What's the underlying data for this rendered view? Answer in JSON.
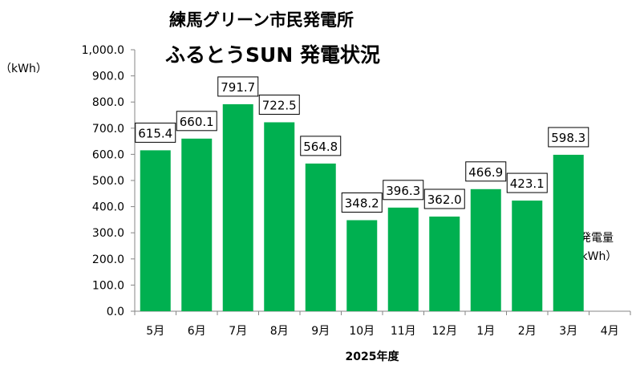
{
  "colors": {
    "bar": "#00b050",
    "axis": "#868686",
    "label_border": "#000000"
  },
  "chart_data": {
    "type": "bar",
    "title": "練馬グリーン市民発電所",
    "subtitle": "ふるとうSUN 発電状況",
    "ylabel_unit": "（kWh）",
    "xlabel": "2025年度",
    "series_name": "発電量",
    "series_unit": "（kWh）",
    "categories": [
      "5月",
      "6月",
      "7月",
      "8月",
      "9月",
      "10月",
      "11月",
      "12月",
      "1月",
      "2月",
      "3月",
      "4月"
    ],
    "values": [
      615.4,
      660.1,
      791.7,
      722.5,
      564.8,
      348.2,
      396.3,
      362.0,
      466.9,
      423.1,
      598.3,
      null
    ],
    "data_labels": [
      "615.4",
      "660.1",
      "791.7",
      "722.5",
      "564.8",
      "348.2",
      "396.3",
      "362.0",
      "466.9",
      "423.1",
      "598.3",
      ""
    ],
    "ylim": [
      0,
      1000
    ],
    "yticks": [
      0,
      100,
      200,
      300,
      400,
      500,
      600,
      700,
      800,
      900,
      1000
    ],
    "ytick_labels": [
      "0.0",
      "100.0",
      "200.0",
      "300.0",
      "400.0",
      "500.0",
      "600.0",
      "700.0",
      "800.0",
      "900.0",
      "1,000.0"
    ],
    "grid": false,
    "legend": "right"
  }
}
